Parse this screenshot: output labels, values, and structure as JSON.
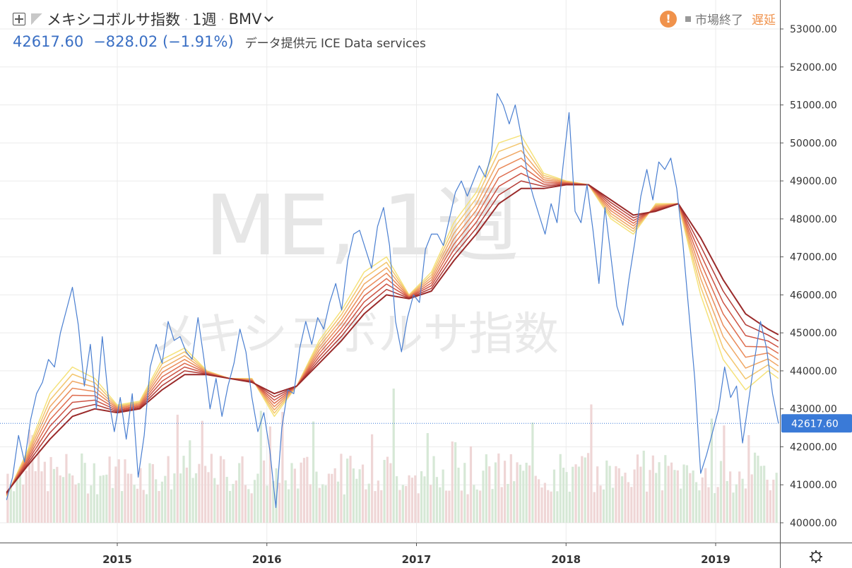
{
  "legend": {
    "title": "メキシコボルサ指数",
    "interval": "1週",
    "exchange": "BMV",
    "last": "42617.60",
    "change": "−828.02 (−1.91%)",
    "source": "データ提供元 ICE Data services"
  },
  "status": {
    "warning_glyph": "!",
    "market": "市場終了",
    "delay": "遅延"
  },
  "watermark": {
    "symbol": "ME, 1週",
    "name": "メキシコボルサ指数"
  },
  "price_label": "42617.60",
  "colors": {
    "price_line": "#4a7fd1",
    "price_label_bg": "#3a7ad7",
    "ribbon": [
      "#f5e27a",
      "#f3c66e",
      "#f0a865",
      "#ea8a59",
      "#de6c4e",
      "#cd5243",
      "#b43c36",
      "#9a2a2a"
    ],
    "volume_up": "#d6e8d6",
    "volume_down": "#efd6d6"
  },
  "chart_data": {
    "type": "line",
    "title": "メキシコボルサ指数 · 1週 · BMV",
    "ylim": [
      39600,
      53400
    ],
    "y_ticks": [
      "53000.00",
      "52000.00",
      "51000.00",
      "50000.00",
      "49000.00",
      "48000.00",
      "47000.00",
      "46000.00",
      "45000.00",
      "44000.00",
      "43000.00",
      "42000.00",
      "41000.00",
      "40000.00"
    ],
    "x_ticks": [
      "2015",
      "2016",
      "2017",
      "2018",
      "2019"
    ],
    "x_tick_dates": [
      2015.0,
      2016.0,
      2017.0,
      2018.0,
      2019.0
    ],
    "x_range": [
      2014.26,
      2019.42
    ],
    "last_value": 42617.6,
    "series": [
      {
        "key": "price",
        "points": [
          [
            2014.26,
            40600
          ],
          [
            2014.3,
            41200
          ],
          [
            2014.34,
            42300
          ],
          [
            2014.38,
            41600
          ],
          [
            2014.42,
            42700
          ],
          [
            2014.46,
            43400
          ],
          [
            2014.5,
            43700
          ],
          [
            2014.54,
            44300
          ],
          [
            2014.58,
            44100
          ],
          [
            2014.62,
            45000
          ],
          [
            2014.66,
            45600
          ],
          [
            2014.7,
            46200
          ],
          [
            2014.74,
            45200
          ],
          [
            2014.78,
            43600
          ],
          [
            2014.82,
            44700
          ],
          [
            2014.86,
            43000
          ],
          [
            2014.9,
            44900
          ],
          [
            2014.94,
            43300
          ],
          [
            2014.98,
            42400
          ],
          [
            2015.02,
            43300
          ],
          [
            2015.06,
            42200
          ],
          [
            2015.1,
            43400
          ],
          [
            2015.14,
            41200
          ],
          [
            2015.18,
            42300
          ],
          [
            2015.22,
            44100
          ],
          [
            2015.26,
            44700
          ],
          [
            2015.3,
            44200
          ],
          [
            2015.34,
            45300
          ],
          [
            2015.38,
            44800
          ],
          [
            2015.42,
            44900
          ],
          [
            2015.46,
            44500
          ],
          [
            2015.5,
            44300
          ],
          [
            2015.54,
            45400
          ],
          [
            2015.58,
            44300
          ],
          [
            2015.62,
            43000
          ],
          [
            2015.66,
            43800
          ],
          [
            2015.7,
            42800
          ],
          [
            2015.74,
            43600
          ],
          [
            2015.78,
            44200
          ],
          [
            2015.82,
            45100
          ],
          [
            2015.86,
            44500
          ],
          [
            2015.9,
            43300
          ],
          [
            2015.94,
            42400
          ],
          [
            2015.98,
            42900
          ],
          [
            2016.02,
            41900
          ],
          [
            2016.06,
            40400
          ],
          [
            2016.1,
            42500
          ],
          [
            2016.14,
            43500
          ],
          [
            2016.18,
            43400
          ],
          [
            2016.22,
            44600
          ],
          [
            2016.26,
            45300
          ],
          [
            2016.3,
            44700
          ],
          [
            2016.34,
            45400
          ],
          [
            2016.38,
            45100
          ],
          [
            2016.42,
            45800
          ],
          [
            2016.46,
            46300
          ],
          [
            2016.5,
            45600
          ],
          [
            2016.54,
            46900
          ],
          [
            2016.58,
            47600
          ],
          [
            2016.62,
            47700
          ],
          [
            2016.66,
            47200
          ],
          [
            2016.7,
            46700
          ],
          [
            2016.74,
            47800
          ],
          [
            2016.78,
            48300
          ],
          [
            2016.82,
            47300
          ],
          [
            2016.86,
            45300
          ],
          [
            2016.9,
            44500
          ],
          [
            2016.94,
            45400
          ],
          [
            2016.98,
            46000
          ],
          [
            2017.02,
            45800
          ],
          [
            2017.06,
            47200
          ],
          [
            2017.1,
            47600
          ],
          [
            2017.14,
            47600
          ],
          [
            2017.18,
            47300
          ],
          [
            2017.22,
            48000
          ],
          [
            2017.26,
            48700
          ],
          [
            2017.3,
            49000
          ],
          [
            2017.34,
            48600
          ],
          [
            2017.38,
            49000
          ],
          [
            2017.42,
            49400
          ],
          [
            2017.46,
            49100
          ],
          [
            2017.5,
            49700
          ],
          [
            2017.54,
            51300
          ],
          [
            2017.58,
            51000
          ],
          [
            2017.62,
            50500
          ],
          [
            2017.66,
            51000
          ],
          [
            2017.7,
            50200
          ],
          [
            2017.74,
            49200
          ],
          [
            2017.78,
            48600
          ],
          [
            2017.82,
            48100
          ],
          [
            2017.86,
            47600
          ],
          [
            2017.9,
            48400
          ],
          [
            2017.94,
            47900
          ],
          [
            2017.98,
            49400
          ],
          [
            2018.02,
            50800
          ],
          [
            2018.06,
            48200
          ],
          [
            2018.1,
            47900
          ],
          [
            2018.14,
            48900
          ],
          [
            2018.18,
            47700
          ],
          [
            2018.22,
            46300
          ],
          [
            2018.26,
            48300
          ],
          [
            2018.3,
            47000
          ],
          [
            2018.34,
            45700
          ],
          [
            2018.38,
            45200
          ],
          [
            2018.42,
            46400
          ],
          [
            2018.46,
            47400
          ],
          [
            2018.5,
            48600
          ],
          [
            2018.54,
            49300
          ],
          [
            2018.58,
            48500
          ],
          [
            2018.62,
            49500
          ],
          [
            2018.66,
            49300
          ],
          [
            2018.7,
            49600
          ],
          [
            2018.74,
            48800
          ],
          [
            2018.78,
            47400
          ],
          [
            2018.82,
            45600
          ],
          [
            2018.86,
            43800
          ],
          [
            2018.9,
            41300
          ],
          [
            2018.94,
            41800
          ],
          [
            2018.98,
            42400
          ],
          [
            2019.02,
            43000
          ],
          [
            2019.06,
            44100
          ],
          [
            2019.1,
            43300
          ],
          [
            2019.14,
            43600
          ],
          [
            2019.18,
            42100
          ],
          [
            2019.22,
            43200
          ],
          [
            2019.26,
            44300
          ],
          [
            2019.3,
            45300
          ],
          [
            2019.34,
            44600
          ],
          [
            2019.38,
            43400
          ],
          [
            2019.42,
            42617.6
          ]
        ]
      },
      {
        "key": "ma_fast",
        "points": [
          [
            2014.26,
            40700
          ],
          [
            2014.4,
            41900
          ],
          [
            2014.55,
            43400
          ],
          [
            2014.7,
            44100
          ],
          [
            2014.85,
            43800
          ],
          [
            2015.0,
            43100
          ],
          [
            2015.15,
            43200
          ],
          [
            2015.3,
            44300
          ],
          [
            2015.45,
            44600
          ],
          [
            2015.6,
            44000
          ],
          [
            2015.75,
            43800
          ],
          [
            2015.9,
            43800
          ],
          [
            2016.05,
            42800
          ],
          [
            2016.2,
            43600
          ],
          [
            2016.35,
            44800
          ],
          [
            2016.5,
            45600
          ],
          [
            2016.65,
            46600
          ],
          [
            2016.8,
            47000
          ],
          [
            2016.95,
            46000
          ],
          [
            2017.1,
            46600
          ],
          [
            2017.25,
            47900
          ],
          [
            2017.4,
            48700
          ],
          [
            2017.55,
            50000
          ],
          [
            2017.7,
            50200
          ],
          [
            2017.85,
            49200
          ],
          [
            2018.0,
            49000
          ],
          [
            2018.15,
            48900
          ],
          [
            2018.3,
            48000
          ],
          [
            2018.45,
            47600
          ],
          [
            2018.6,
            48400
          ],
          [
            2018.75,
            48400
          ],
          [
            2018.9,
            46000
          ],
          [
            2019.05,
            44300
          ],
          [
            2019.2,
            43500
          ],
          [
            2019.35,
            44000
          ],
          [
            2019.42,
            43800
          ]
        ]
      },
      {
        "key": "ma_slow",
        "points": [
          [
            2014.26,
            40800
          ],
          [
            2014.4,
            41500
          ],
          [
            2014.55,
            42200
          ],
          [
            2014.7,
            42800
          ],
          [
            2014.85,
            43000
          ],
          [
            2015.0,
            42900
          ],
          [
            2015.15,
            43000
          ],
          [
            2015.3,
            43500
          ],
          [
            2015.45,
            43900
          ],
          [
            2015.6,
            43900
          ],
          [
            2015.75,
            43800
          ],
          [
            2015.9,
            43700
          ],
          [
            2016.05,
            43400
          ],
          [
            2016.2,
            43600
          ],
          [
            2016.35,
            44200
          ],
          [
            2016.5,
            44800
          ],
          [
            2016.65,
            45500
          ],
          [
            2016.8,
            46000
          ],
          [
            2016.95,
            45900
          ],
          [
            2017.1,
            46100
          ],
          [
            2017.25,
            46900
          ],
          [
            2017.4,
            47600
          ],
          [
            2017.55,
            48400
          ],
          [
            2017.7,
            48800
          ],
          [
            2017.85,
            48800
          ],
          [
            2018.0,
            48900
          ],
          [
            2018.15,
            48900
          ],
          [
            2018.3,
            48500
          ],
          [
            2018.45,
            48100
          ],
          [
            2018.6,
            48200
          ],
          [
            2018.75,
            48400
          ],
          [
            2018.9,
            47500
          ],
          [
            2019.05,
            46400
          ],
          [
            2019.2,
            45500
          ],
          [
            2019.35,
            45100
          ],
          [
            2019.42,
            44950
          ]
        ]
      }
    ],
    "ribbon_lines": 8
  }
}
